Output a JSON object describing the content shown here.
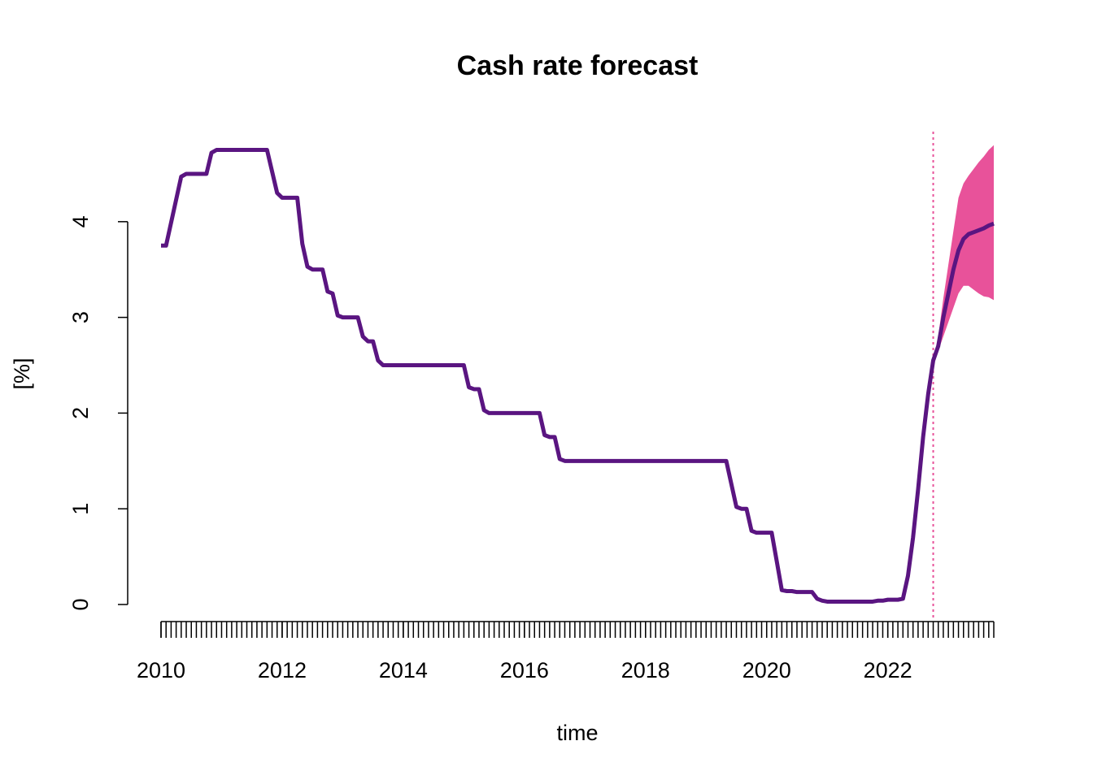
{
  "chart_data": {
    "type": "line",
    "title": "Cash rate forecast",
    "x_label": "time",
    "y_label": "[%]",
    "x": [
      2010,
      2010.083,
      2010.333,
      2010.417,
      2010.75,
      2010.833,
      2010.917,
      2011.75,
      2011.917,
      2012,
      2012.25,
      2012.333,
      2012.417,
      2012.5,
      2012.667,
      2012.75,
      2012.833,
      2012.917,
      2013,
      2013.25,
      2013.333,
      2013.417,
      2013.5,
      2013.583,
      2013.667,
      2015,
      2015.083,
      2015.167,
      2015.25,
      2015.333,
      2015.417,
      2016.25,
      2016.333,
      2016.417,
      2016.5,
      2016.583,
      2016.667,
      2019.333,
      2019.5,
      2019.583,
      2019.667,
      2019.75,
      2019.833,
      2020.083,
      2020.167,
      2020.25,
      2020.333,
      2020.417,
      2020.5,
      2020.75,
      2020.833,
      2020.917,
      2021,
      2021.75,
      2021.833,
      2021.917,
      2022,
      2022.167,
      2022.25,
      2022.333,
      2022.417,
      2022.5,
      2022.583,
      2022.667,
      2022.75,
      2022.833,
      2022.917,
      2023,
      2023.083,
      2023.167,
      2023.25,
      2023.333,
      2023.417,
      2023.5,
      2023.583,
      2023.667,
      2023.75
    ],
    "values": [
      3.75,
      3.75,
      4.47,
      4.5,
      4.5,
      4.72,
      4.75,
      4.75,
      4.3,
      4.25,
      4.25,
      3.77,
      3.53,
      3.5,
      3.5,
      3.27,
      3.25,
      3.02,
      3.0,
      3.0,
      2.8,
      2.75,
      2.75,
      2.55,
      2.5,
      2.5,
      2.27,
      2.25,
      2.25,
      2.03,
      2.0,
      2.0,
      1.77,
      1.75,
      1.75,
      1.52,
      1.5,
      1.5,
      1.02,
      1.0,
      1.0,
      0.77,
      0.75,
      0.75,
      0.45,
      0.15,
      0.14,
      0.14,
      0.13,
      0.13,
      0.06,
      0.04,
      0.03,
      0.03,
      0.04,
      0.04,
      0.05,
      0.05,
      0.06,
      0.3,
      0.7,
      1.2,
      1.75,
      2.2,
      2.55,
      2.7,
      3.0,
      3.25,
      3.5,
      3.7,
      3.82,
      3.87,
      3.89,
      3.91,
      3.93,
      3.96,
      3.98
    ],
    "color": "#5a1581",
    "band": {
      "x": [
        2022.75,
        2022.833,
        2022.917,
        2023,
        2023.083,
        2023.167,
        2023.25,
        2023.333,
        2023.417,
        2023.5,
        2023.583,
        2023.667,
        2023.75
      ],
      "lower": [
        2.55,
        2.65,
        2.8,
        2.95,
        3.1,
        3.25,
        3.33,
        3.33,
        3.29,
        3.25,
        3.22,
        3.21,
        3.18
      ],
      "upper": [
        2.55,
        2.8,
        3.2,
        3.55,
        3.9,
        4.25,
        4.4,
        4.48,
        4.55,
        4.62,
        4.68,
        4.75,
        4.8
      ],
      "color": "#e8529a"
    },
    "vline": {
      "x": 2022.75,
      "color": "#e8529a"
    },
    "xlim": [
      2010,
      2023.75
    ],
    "xticks": [
      2010,
      2012,
      2014,
      2016,
      2018,
      2020,
      2022
    ],
    "xminor_per_unit": 12,
    "ylim": [
      0,
      4.8
    ],
    "yticks": [
      0,
      1,
      2,
      3,
      4
    ]
  }
}
